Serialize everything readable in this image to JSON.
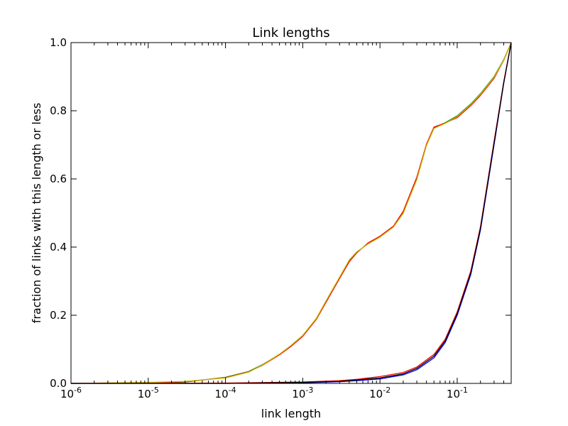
{
  "chart_data": {
    "type": "line",
    "title": "Link lengths",
    "xlabel": "link length",
    "ylabel": "fraction of links with this length or less",
    "xscale": "log",
    "xlim": [
      1e-06,
      0.5
    ],
    "ylim": [
      0,
      1
    ],
    "grid": false,
    "legend": "none",
    "x_ticks": [
      {
        "value": 1e-06,
        "base": "10",
        "exp": "-6"
      },
      {
        "value": 1e-05,
        "base": "10",
        "exp": "-5"
      },
      {
        "value": 0.0001,
        "base": "10",
        "exp": "-4"
      },
      {
        "value": 0.001,
        "base": "10",
        "exp": "-3"
      },
      {
        "value": 0.01,
        "base": "10",
        "exp": "-2"
      },
      {
        "value": 0.1,
        "base": "10",
        "exp": "-1"
      }
    ],
    "y_ticks": [
      {
        "value": 0.0,
        "label": "0.0"
      },
      {
        "value": 0.2,
        "label": "0.2"
      },
      {
        "value": 0.4,
        "label": "0.4"
      },
      {
        "value": 0.6,
        "label": "0.6"
      },
      {
        "value": 0.8,
        "label": "0.8"
      },
      {
        "value": 1.0,
        "label": "1.0"
      }
    ],
    "series": [
      {
        "color": "#008000",
        "values": [
          [
            1e-06,
            0.0
          ],
          [
            1e-05,
            0.002
          ],
          [
            3e-05,
            0.004
          ],
          [
            0.0001,
            0.018
          ],
          [
            0.0002,
            0.035
          ],
          [
            0.0003,
            0.055
          ],
          [
            0.0005,
            0.085
          ],
          [
            0.0007,
            0.11
          ],
          [
            0.001,
            0.14
          ],
          [
            0.0015,
            0.19
          ],
          [
            0.002,
            0.24
          ],
          [
            0.003,
            0.31
          ],
          [
            0.004,
            0.36
          ],
          [
            0.005,
            0.385
          ],
          [
            0.007,
            0.41
          ],
          [
            0.01,
            0.43
          ],
          [
            0.015,
            0.46
          ],
          [
            0.02,
            0.5
          ],
          [
            0.03,
            0.6
          ],
          [
            0.04,
            0.7
          ],
          [
            0.05,
            0.75
          ],
          [
            0.07,
            0.765
          ],
          [
            0.1,
            0.785
          ],
          [
            0.15,
            0.82
          ],
          [
            0.2,
            0.85
          ],
          [
            0.3,
            0.9
          ],
          [
            0.4,
            0.95
          ],
          [
            0.5,
            1.0
          ]
        ]
      },
      {
        "color": "#ff0000",
        "values": [
          [
            1e-06,
            0.0
          ],
          [
            1e-05,
            0.002
          ],
          [
            3e-05,
            0.005
          ],
          [
            0.0001,
            0.017
          ],
          [
            0.0002,
            0.034
          ],
          [
            0.0003,
            0.053
          ],
          [
            0.0005,
            0.084
          ],
          [
            0.0007,
            0.108
          ],
          [
            0.001,
            0.138
          ],
          [
            0.0015,
            0.188
          ],
          [
            0.002,
            0.238
          ],
          [
            0.003,
            0.308
          ],
          [
            0.004,
            0.357
          ],
          [
            0.005,
            0.383
          ],
          [
            0.007,
            0.412
          ],
          [
            0.01,
            0.432
          ],
          [
            0.015,
            0.462
          ],
          [
            0.02,
            0.505
          ],
          [
            0.03,
            0.605
          ],
          [
            0.04,
            0.702
          ],
          [
            0.05,
            0.752
          ],
          [
            0.07,
            0.764
          ],
          [
            0.1,
            0.78
          ],
          [
            0.15,
            0.815
          ],
          [
            0.2,
            0.845
          ],
          [
            0.3,
            0.895
          ],
          [
            0.4,
            0.948
          ],
          [
            0.5,
            1.0
          ]
        ]
      },
      {
        "color": "#bfbf00",
        "values": [
          [
            1e-06,
            0.0
          ],
          [
            1e-05,
            0.003
          ],
          [
            3e-05,
            0.006
          ],
          [
            0.0001,
            0.016
          ],
          [
            0.0002,
            0.033
          ],
          [
            0.0003,
            0.054
          ],
          [
            0.0005,
            0.086
          ],
          [
            0.0007,
            0.111
          ],
          [
            0.001,
            0.141
          ],
          [
            0.0015,
            0.191
          ],
          [
            0.002,
            0.242
          ],
          [
            0.003,
            0.312
          ],
          [
            0.004,
            0.362
          ],
          [
            0.005,
            0.386
          ],
          [
            0.007,
            0.409
          ],
          [
            0.01,
            0.429
          ],
          [
            0.015,
            0.459
          ],
          [
            0.02,
            0.499
          ],
          [
            0.03,
            0.598
          ],
          [
            0.04,
            0.698
          ],
          [
            0.05,
            0.748
          ],
          [
            0.07,
            0.763
          ],
          [
            0.1,
            0.783
          ],
          [
            0.15,
            0.818
          ],
          [
            0.2,
            0.848
          ],
          [
            0.3,
            0.898
          ],
          [
            0.4,
            0.949
          ],
          [
            0.5,
            1.0
          ]
        ]
      },
      {
        "color": "#0000ff",
        "values": [
          [
            1e-06,
            0.0
          ],
          [
            0.0001,
            0.0
          ],
          [
            0.001,
            0.002
          ],
          [
            0.003,
            0.005
          ],
          [
            0.005,
            0.008
          ],
          [
            0.01,
            0.013
          ],
          [
            0.02,
            0.025
          ],
          [
            0.03,
            0.04
          ],
          [
            0.05,
            0.075
          ],
          [
            0.07,
            0.12
          ],
          [
            0.1,
            0.2
          ],
          [
            0.15,
            0.32
          ],
          [
            0.2,
            0.45
          ],
          [
            0.3,
            0.7
          ],
          [
            0.4,
            0.88
          ],
          [
            0.5,
            1.0
          ]
        ]
      },
      {
        "color": "#ff0000",
        "values": [
          [
            1e-06,
            0.0
          ],
          [
            0.0001,
            0.001
          ],
          [
            0.001,
            0.004
          ],
          [
            0.003,
            0.008
          ],
          [
            0.005,
            0.012
          ],
          [
            0.01,
            0.02
          ],
          [
            0.02,
            0.032
          ],
          [
            0.03,
            0.048
          ],
          [
            0.05,
            0.085
          ],
          [
            0.07,
            0.13
          ],
          [
            0.1,
            0.21
          ],
          [
            0.15,
            0.33
          ],
          [
            0.2,
            0.46
          ],
          [
            0.3,
            0.71
          ],
          [
            0.4,
            0.885
          ],
          [
            0.5,
            1.0
          ]
        ]
      },
      {
        "color": "#000000",
        "values": [
          [
            1e-06,
            0.0
          ],
          [
            0.0001,
            0.0
          ],
          [
            0.001,
            0.003
          ],
          [
            0.003,
            0.006
          ],
          [
            0.005,
            0.01
          ],
          [
            0.01,
            0.016
          ],
          [
            0.02,
            0.028
          ],
          [
            0.03,
            0.044
          ],
          [
            0.05,
            0.08
          ],
          [
            0.07,
            0.125
          ],
          [
            0.1,
            0.205
          ],
          [
            0.15,
            0.325
          ],
          [
            0.2,
            0.455
          ],
          [
            0.3,
            0.705
          ],
          [
            0.4,
            0.882
          ],
          [
            0.5,
            1.0
          ]
        ]
      }
    ]
  }
}
